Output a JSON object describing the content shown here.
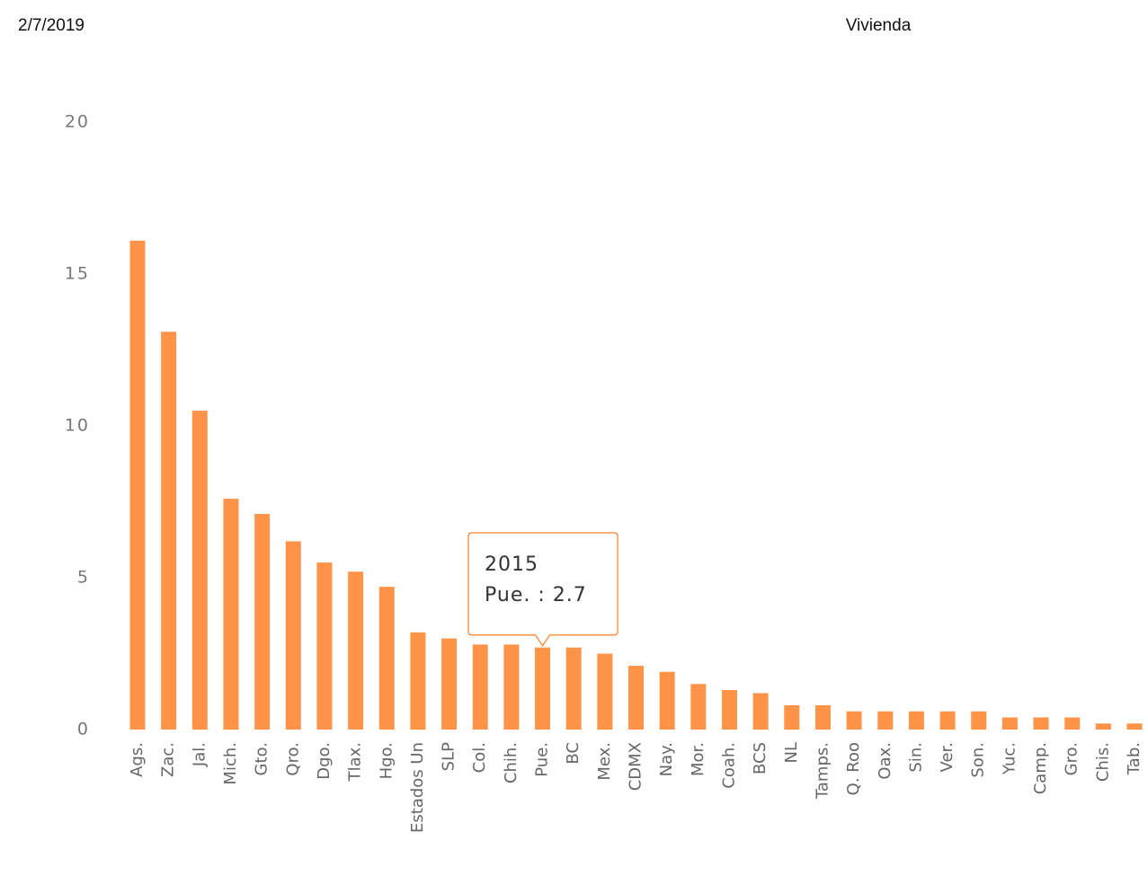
{
  "chart_data": {
    "type": "bar",
    "title": "Vivienda",
    "date": "2/7/2019",
    "categories": [
      "Ags.",
      "Zac.",
      "Jal.",
      "Mich.",
      "Gto.",
      "Qro.",
      "Dgo.",
      "Tlax.",
      "Hgo.",
      "Estados Un",
      "SLP",
      "Col.",
      "Chih.",
      "Pue.",
      "BC",
      "Mex.",
      "CDMX",
      "Nay.",
      "Mor.",
      "Coah.",
      "BCS",
      "NL",
      "Tamps.",
      "Q. Roo",
      "Oax.",
      "Sin.",
      "Ver.",
      "Son.",
      "Yuc.",
      "Camp.",
      "Gro.",
      "Chis.",
      "Tab."
    ],
    "values": [
      16.1,
      13.1,
      10.5,
      7.6,
      7.1,
      6.2,
      5.5,
      5.2,
      4.7,
      3.2,
      3.0,
      2.8,
      2.8,
      2.7,
      2.7,
      2.5,
      2.1,
      1.9,
      1.5,
      1.3,
      1.2,
      0.8,
      0.8,
      0.6,
      0.6,
      0.6,
      0.6,
      0.6,
      0.4,
      0.4,
      0.4,
      0.2,
      0.2
    ],
    "color": "#ff9448",
    "ylim": [
      0,
      20
    ],
    "yticks": [
      0,
      5,
      10,
      15,
      20
    ],
    "grid": false,
    "tooltip": {
      "title": "2015",
      "label": "Pue. : 2.7",
      "index": 13
    }
  }
}
